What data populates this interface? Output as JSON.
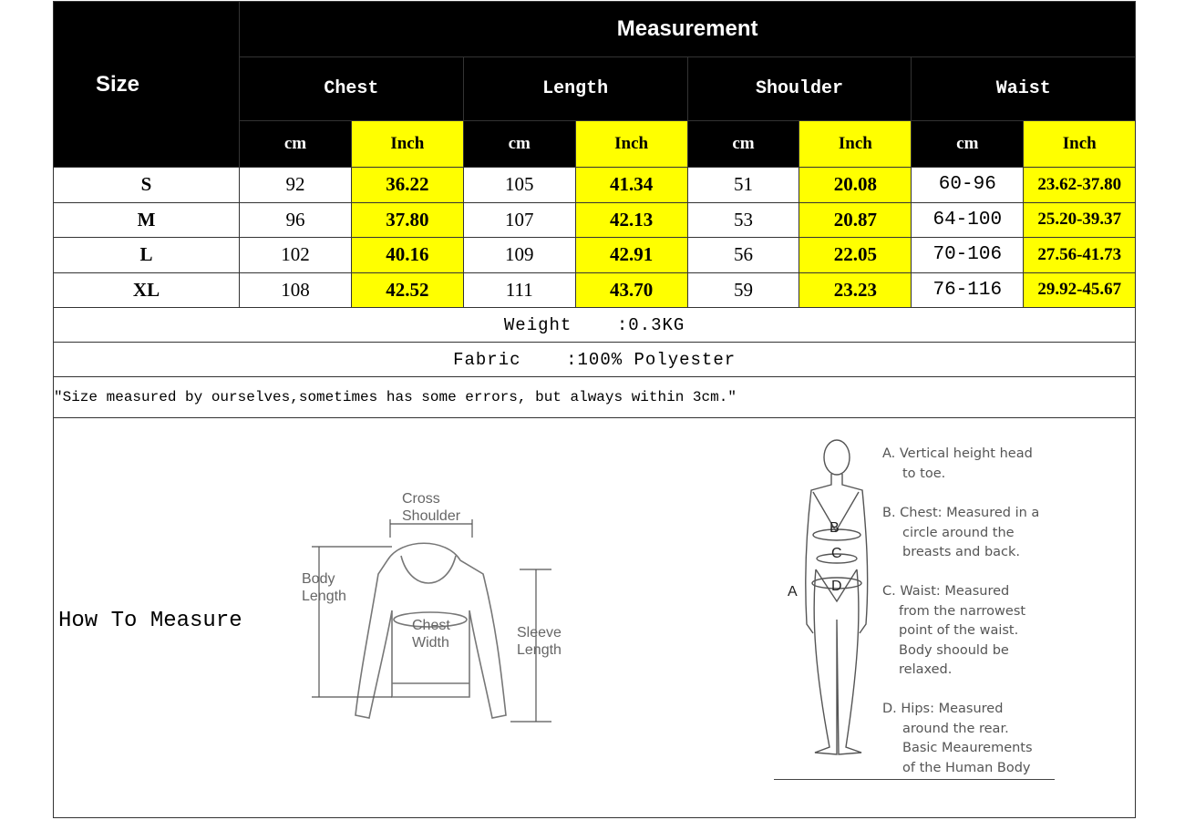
{
  "header": {
    "size_label": "Size",
    "measurement_label": "Measurement"
  },
  "groups": [
    "Chest",
    "Length",
    "Shoulder",
    "Waist"
  ],
  "units": {
    "cm": "cm",
    "inch": "Inch"
  },
  "colors": {
    "header_bg": "#000000",
    "inch_highlight": "#ffff00"
  },
  "rows": [
    {
      "size": "S",
      "values": [
        "92",
        "36.22",
        "105",
        "41.34",
        "51",
        "20.08",
        "60-96",
        "23.62-37.80"
      ]
    },
    {
      "size": "M",
      "values": [
        "96",
        "37.80",
        "107",
        "42.13",
        "53",
        "20.87",
        "64-100",
        "25.20-39.37"
      ]
    },
    {
      "size": "L",
      "values": [
        "102",
        "40.16",
        "109",
        "42.91",
        "56",
        "22.05",
        "70-106",
        "27.56-41.73"
      ]
    },
    {
      "size": "XL",
      "values": [
        "108",
        "42.52",
        "111",
        "43.70",
        "59",
        "23.23",
        "76-116",
        "29.92-45.67"
      ]
    }
  ],
  "weight": "Weight    :0.3KG",
  "fabric": "Fabric    :100% Polyester",
  "note": "\"Size measured by ourselves,sometimes has some errors, but always within 3cm.\"",
  "how_to_measure": "How To Measure",
  "sweater_labels": {
    "cross_shoulder_1": "Cross",
    "cross_shoulder_2": "Shoulder",
    "body_length_1": "Body",
    "body_length_2": "Length",
    "chest_width_1": "Chest",
    "chest_width_2": "Width",
    "sleeve_length_1": "Sleeve",
    "sleeve_length_2": "Length"
  },
  "body_labels": {
    "a": "A",
    "b": "B",
    "c": "C",
    "d": "D"
  },
  "body_desc": {
    "a1": "A. Vertical height head",
    "a2": "to toe.",
    "b1": "B. Chest: Measured in a",
    "b2": "circle around the",
    "b3": "breasts and back.",
    "c1": "C. Waist: Measured",
    "c2": "from the narrowest",
    "c3": "point of the waist.",
    "c4": "Body shoould be",
    "c5": "relaxed.",
    "d1": "D. Hips: Measured",
    "d2": "around the rear.",
    "d3": "Basic Meaurements",
    "d4": "of the Human Body"
  }
}
